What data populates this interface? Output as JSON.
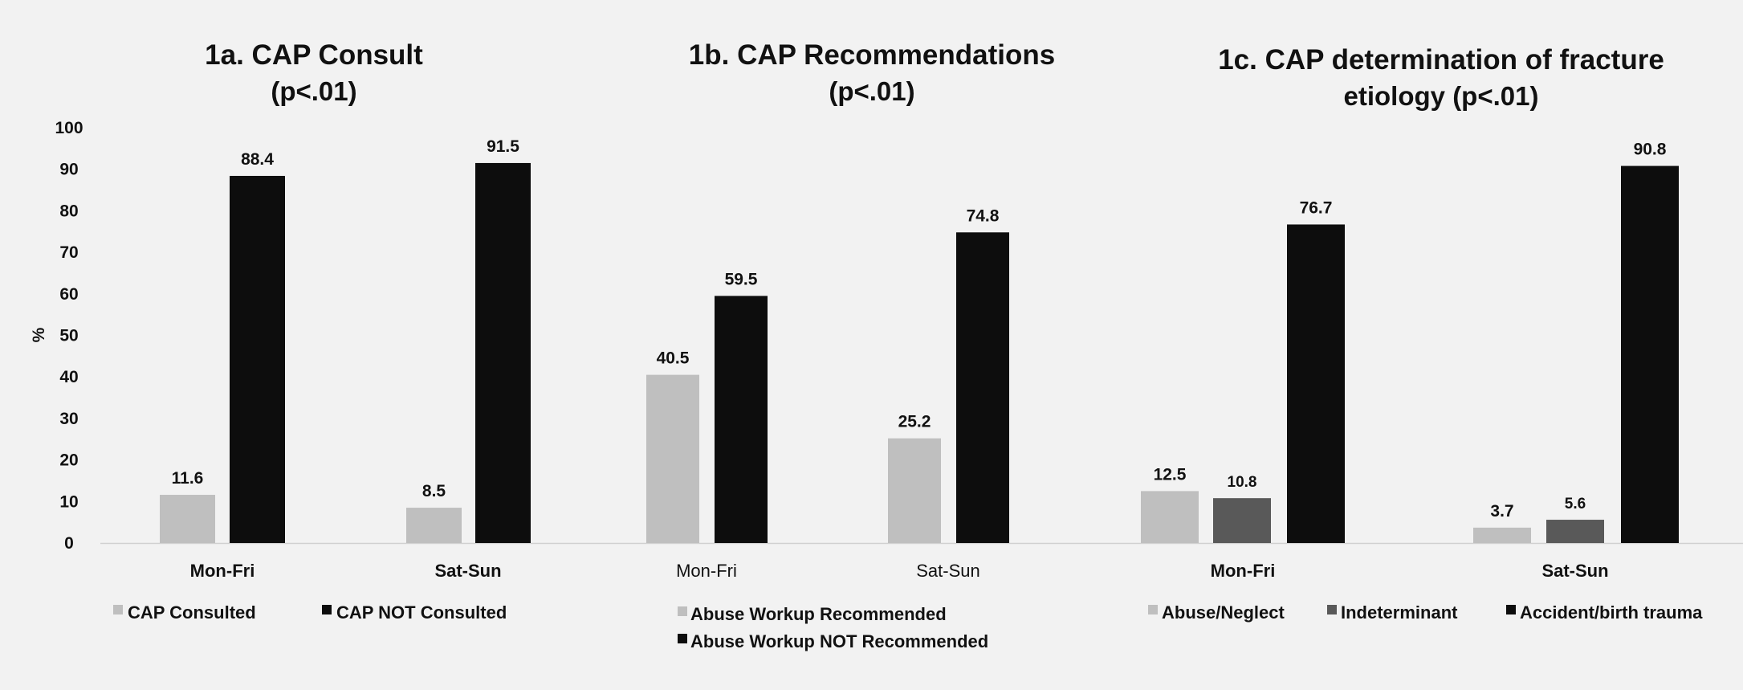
{
  "chart_data": [
    {
      "type": "bar",
      "title": "1a. CAP Consult",
      "subtitle": "(p<.01)",
      "ylabel": "%",
      "ylim": [
        0,
        100
      ],
      "yticks": [
        "0",
        "10",
        "20",
        "30",
        "40",
        "50",
        "60",
        "70",
        "80",
        "90",
        "100"
      ],
      "categories": [
        "Mon-Fri",
        "Sat-Sun"
      ],
      "category_bold": true,
      "series": [
        {
          "name": "CAP Consulted",
          "values": [
            11.6,
            8.5
          ],
          "labels": [
            "11.6",
            "8.5"
          ],
          "color": "#bfbfbf"
        },
        {
          "name": "CAP NOT Consulted",
          "values": [
            88.4,
            91.5
          ],
          "labels": [
            "88.4",
            "91.5"
          ],
          "color": "#0d0d0d"
        }
      ],
      "legend_position": "bottom"
    },
    {
      "type": "bar",
      "title": "1b. CAP Recommendations",
      "subtitle": "(p<.01)",
      "ylim": [
        0,
        100
      ],
      "categories": [
        "Mon-Fri",
        "Sat-Sun"
      ],
      "category_bold": false,
      "series": [
        {
          "name": "Abuse Workup Recommended",
          "values": [
            40.5,
            25.2
          ],
          "labels": [
            "40.5",
            "25.2"
          ],
          "color": "#bfbfbf"
        },
        {
          "name": "Abuse Workup NOT Recommended",
          "values": [
            59.5,
            74.8
          ],
          "labels": [
            "59.5",
            "74.8"
          ],
          "color": "#0d0d0d"
        }
      ],
      "legend_position": "bottom"
    },
    {
      "type": "bar",
      "title": "1c. CAP determination of fracture",
      "subtitle": "etiology (p<.01)",
      "ylim": [
        0,
        100
      ],
      "categories": [
        "Mon-Fri",
        "Sat-Sun"
      ],
      "category_bold": true,
      "series": [
        {
          "name": "Abuse/Neglect",
          "values": [
            12.5,
            3.7
          ],
          "labels": [
            "12.5",
            "3.7"
          ],
          "color": "#bfbfbf"
        },
        {
          "name": "Indeterminant",
          "values": [
            10.8,
            5.6
          ],
          "labels": [
            "10.8",
            "5.6"
          ],
          "color": "#595959"
        },
        {
          "name": "Accident/birth trauma",
          "values": [
            76.7,
            90.8
          ],
          "labels": [
            "76.7",
            "90.8"
          ],
          "color": "#0d0d0d"
        }
      ],
      "legend_position": "bottom"
    }
  ]
}
